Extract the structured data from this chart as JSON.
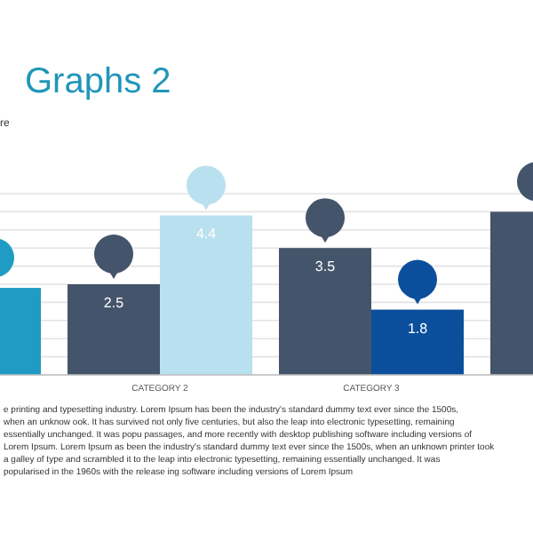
{
  "chart_data": {
    "type": "bar",
    "title": "Graphs 2",
    "subtitle": "re",
    "categories": [
      null,
      "CATEGORY 2",
      "CATEGORY 3",
      null
    ],
    "series": [
      {
        "colors": [
          "#44546a",
          "#44546a",
          "#44546a",
          "#44546a"
        ],
        "values": [
          null,
          2.5,
          3.5,
          4.5
        ],
        "value_labels": [
          null,
          "2.5",
          "3.5",
          null
        ]
      },
      {
        "colors": [
          "#1f9bc4",
          "#b9e0ee",
          "#0b4f9c",
          "#0b4f9c"
        ],
        "values": [
          2.4,
          4.4,
          1.8,
          null
        ],
        "value_labels": [
          null,
          "4.4",
          "1.8",
          null
        ]
      }
    ],
    "ylim": [
      0,
      5
    ],
    "yticks": [
      {
        "value": 0,
        "label": null
      },
      {
        "value": 0.5,
        "label": null
      },
      {
        "value": 1,
        "label": null
      },
      {
        "value": 1.5,
        "label": null
      },
      {
        "value": 2,
        "label": null
      },
      {
        "value": 2.5,
        "label": null
      },
      {
        "value": 3,
        "label": null
      },
      {
        "value": 3.5,
        "label": null
      },
      {
        "value": 4,
        "label": null
      },
      {
        "value": 4.5,
        "label": null
      },
      {
        "value": 5,
        "label": null
      }
    ],
    "grid": "y",
    "tick_labels": "x",
    "annotations": [
      "e printing and typesetting industry. Lorem Ipsum has been the industry's standard dummy text ever since the 1500s, when an unknow ook. It has survived not only five centuries, but also the leap into electronic typesetting, remaining essentially unchanged. It was popu passages, and more recently with desktop publishing software including versions of Lorem Ipsum. Lorem Ipsum as been the industry's standard dummy text ever since the 1500s, when an unknown printer took a galley of type and scrambled it to the leap into electronic typesetting, remaining essentially unchanged. It was popularised in the 1960s with the release ing software including versions of Lorem Ipsum"
    ]
  }
}
